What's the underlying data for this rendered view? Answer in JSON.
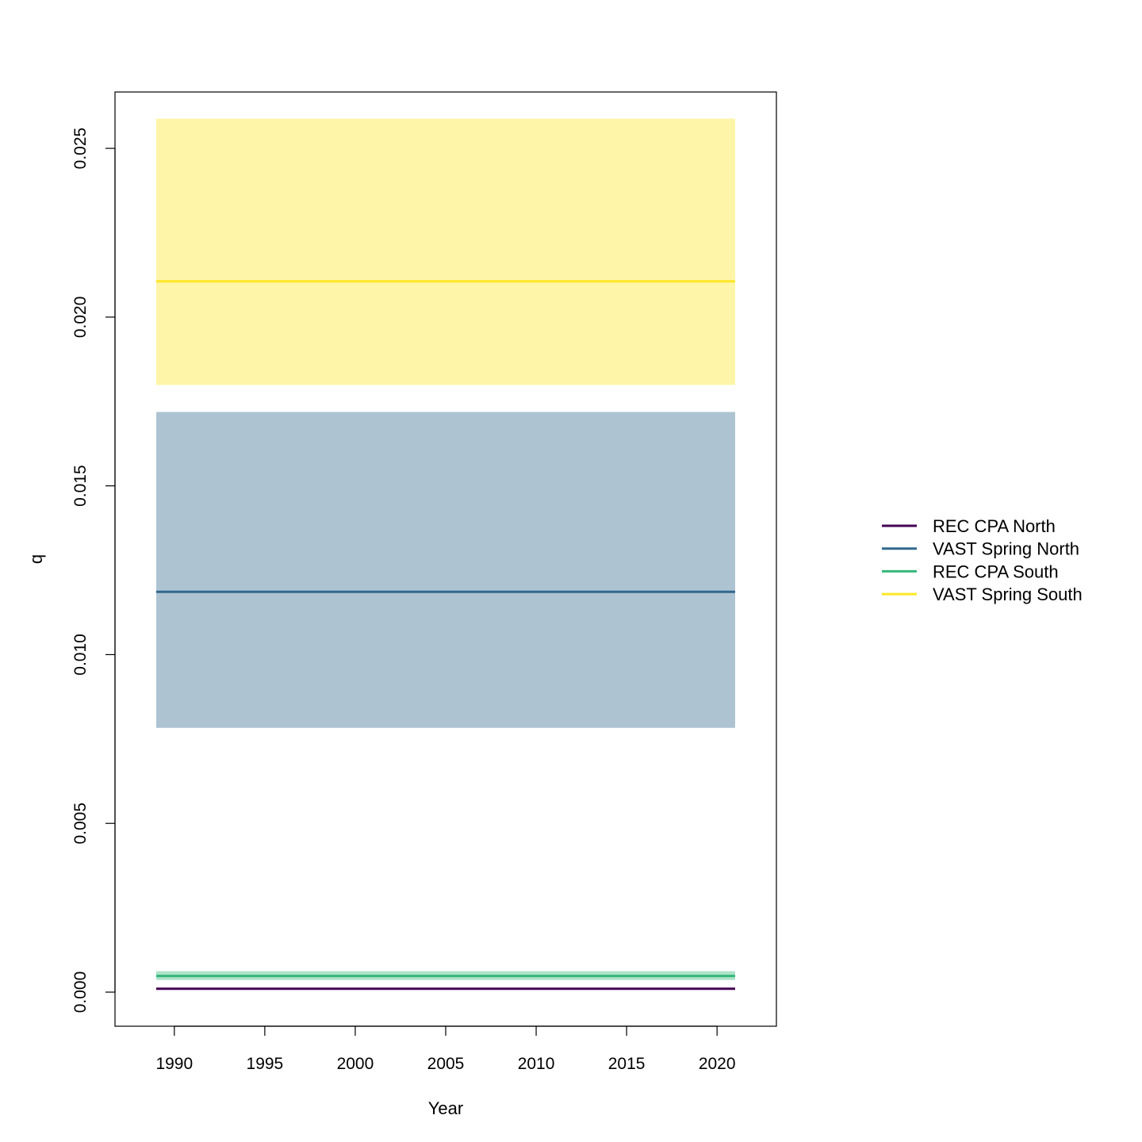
{
  "chart_data": {
    "type": "line",
    "title": "",
    "xlabel": "Year",
    "ylabel": "q",
    "x_range": [
      1989,
      2021
    ],
    "xlim": [
      1986.72,
      2023.28
    ],
    "ylim": [
      -0.00101,
      0.02667
    ],
    "xticks": [
      1990,
      1995,
      2000,
      2005,
      2010,
      2015,
      2020
    ],
    "xtick_labels": [
      "1990",
      "1995",
      "2000",
      "2005",
      "2010",
      "2015",
      "2020"
    ],
    "yticks": [
      0.0,
      0.005,
      0.01,
      0.015,
      0.02,
      0.025
    ],
    "ytick_labels": [
      "0.000",
      "0.005",
      "0.010",
      "0.015",
      "0.020",
      "0.025"
    ],
    "grid": false,
    "legend_position": "right",
    "series": [
      {
        "name": "REC CPA North",
        "color": "#440154",
        "value": 0.0001,
        "lower": 8e-05,
        "upper": 0.00012,
        "band_color": "#440154"
      },
      {
        "name": "VAST Spring North",
        "color": "#31688E",
        "value": 0.01186,
        "lower": 0.00783,
        "upper": 0.01719,
        "band_color": "#31688E"
      },
      {
        "name": "REC CPA South",
        "color": "#35B779",
        "value": 0.00048,
        "lower": 0.00036,
        "upper": 0.00062,
        "band_color": "#35B779"
      },
      {
        "name": "VAST Spring South",
        "color": "#FDE725",
        "value": 0.02106,
        "lower": 0.01799,
        "upper": 0.02588,
        "band_color": "#FDE725"
      }
    ]
  }
}
